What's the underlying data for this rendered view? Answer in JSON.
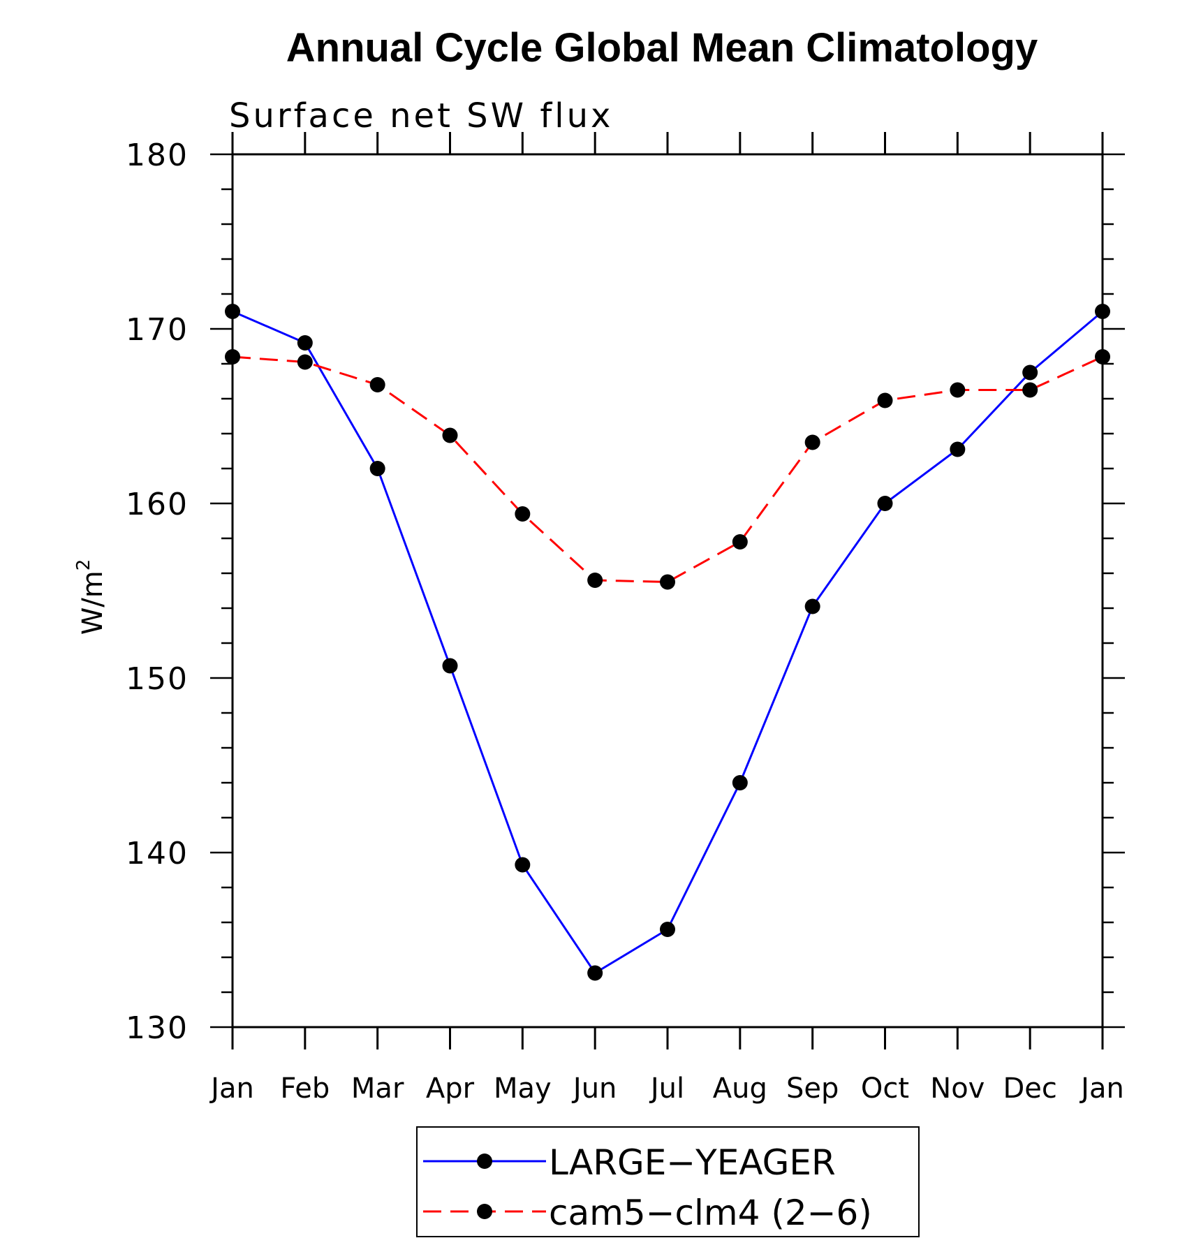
{
  "chart_data": {
    "type": "line",
    "title": "Annual Cycle Global Mean Climatology",
    "subtitle": "Surface net SW flux",
    "ylabel": "W/m",
    "ylabel_sup": "2",
    "xlabel": "",
    "categories": [
      "Jan",
      "Feb",
      "Mar",
      "Apr",
      "May",
      "Jun",
      "Jul",
      "Aug",
      "Sep",
      "Oct",
      "Nov",
      "Dec",
      "Jan"
    ],
    "ylim": [
      130,
      180
    ],
    "yticks": [
      "130",
      "140",
      "150",
      "160",
      "170",
      "180"
    ],
    "grid": false,
    "legend_position": "bottom",
    "series": [
      {
        "name": "LARGE−YEAGER",
        "color": "#0000ff",
        "style": "solid",
        "marker": "filled-circle",
        "values": [
          171.0,
          169.2,
          162.0,
          150.7,
          139.3,
          133.1,
          135.6,
          144.0,
          154.1,
          160.0,
          163.1,
          167.5,
          171.0
        ]
      },
      {
        "name": "cam5−clm4 (2−6)",
        "color": "#ff0000",
        "style": "dashed",
        "marker": "filled-circle",
        "values": [
          168.4,
          168.1,
          166.8,
          163.9,
          159.4,
          155.6,
          155.5,
          157.8,
          163.5,
          165.9,
          166.5,
          166.5,
          168.4
        ]
      }
    ]
  }
}
